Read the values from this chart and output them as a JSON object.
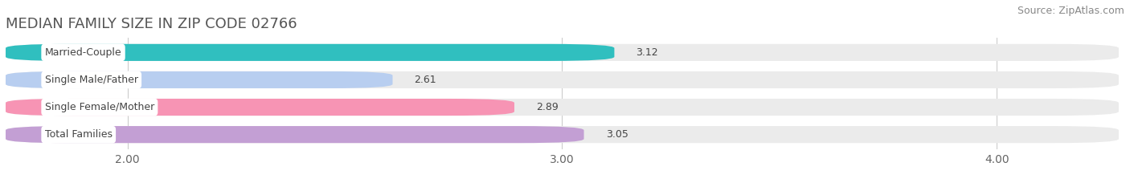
{
  "title": "MEDIAN FAMILY SIZE IN ZIP CODE 02766",
  "source": "Source: ZipAtlas.com",
  "categories": [
    "Married-Couple",
    "Single Male/Father",
    "Single Female/Mother",
    "Total Families"
  ],
  "values": [
    3.12,
    2.61,
    2.89,
    3.05
  ],
  "bar_colors": [
    "#30bfbf",
    "#b8cef0",
    "#f794b4",
    "#c39fd4"
  ],
  "xlim_left": 1.72,
  "xlim_right": 4.28,
  "xticks": [
    2.0,
    3.0,
    4.0
  ],
  "xtick_labels": [
    "2.00",
    "3.00",
    "4.00"
  ],
  "background_color": "#ffffff",
  "bar_background_color": "#ebebeb",
  "title_fontsize": 13,
  "source_fontsize": 9,
  "tick_fontsize": 10,
  "label_fontsize": 9,
  "value_fontsize": 9,
  "bar_height": 0.62,
  "figsize": [
    14.06,
    2.33
  ]
}
